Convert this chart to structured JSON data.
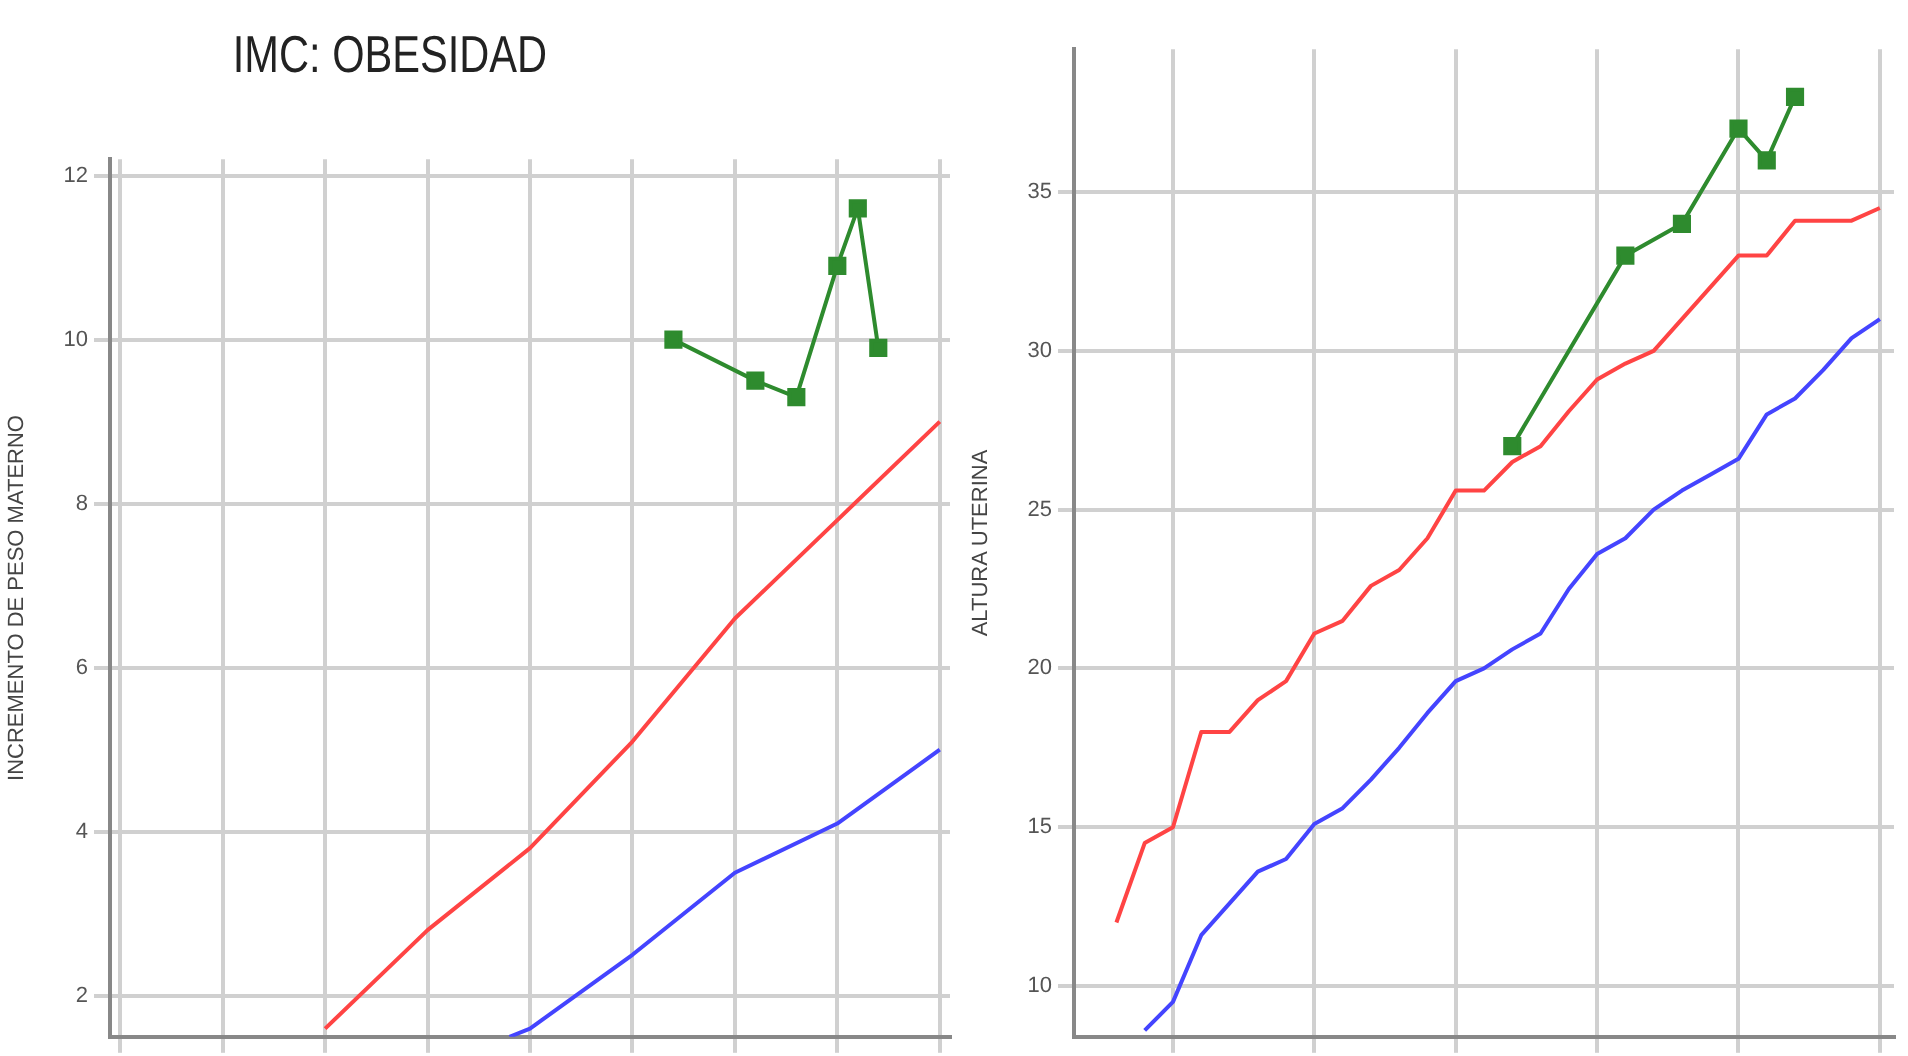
{
  "chart_data": [
    {
      "type": "line",
      "title": "IMC: OBESIDAD",
      "ylabel": "INCREMENTO DE PESO MATERNO",
      "categories": [
        null,
        null,
        null,
        null,
        null,
        null,
        null,
        null,
        null,
        null,
        null,
        null,
        null,
        null,
        null,
        null,
        null,
        null,
        null,
        null,
        null,
        null,
        null,
        null,
        null,
        null,
        null,
        null,
        null,
        null,
        null,
        null,
        null,
        null,
        null,
        null,
        null,
        null,
        null,
        null,
        null
      ],
      "ylim": [
        1.5,
        12.2
      ],
      "yticks": [
        2,
        4,
        6,
        8,
        10,
        12
      ],
      "grid": true,
      "tick_labels": "y",
      "series": [
        {
          "color": "#ff4444",
          "marker": "none",
          "values": [
            null,
            null,
            null,
            null,
            null,
            null,
            null,
            null,
            null,
            null,
            1.6,
            null,
            null,
            null,
            null,
            2.8,
            null,
            null,
            null,
            null,
            3.8,
            null,
            null,
            null,
            null,
            5.1,
            null,
            null,
            null,
            null,
            6.6,
            null,
            null,
            null,
            null,
            7.8,
            null,
            null,
            null,
            null,
            9.0
          ]
        },
        {
          "color": "#4444ff",
          "marker": "none",
          "values": [
            null,
            null,
            null,
            null,
            null,
            null,
            null,
            null,
            null,
            null,
            null,
            null,
            null,
            null,
            null,
            null,
            null,
            null,
            null,
            1.5,
            1.6,
            null,
            null,
            null,
            null,
            2.5,
            null,
            null,
            null,
            null,
            3.5,
            null,
            null,
            null,
            null,
            4.1,
            null,
            null,
            null,
            null,
            5.0
          ]
        },
        {
          "color": "#2e8b2e",
          "marker": "square",
          "values": [
            null,
            null,
            null,
            null,
            null,
            null,
            null,
            null,
            null,
            null,
            null,
            null,
            null,
            null,
            null,
            null,
            null,
            null,
            null,
            null,
            null,
            null,
            null,
            null,
            null,
            null,
            null,
            10.0,
            null,
            null,
            null,
            9.5,
            null,
            9.3,
            null,
            10.9,
            11.6,
            9.9,
            null,
            null,
            null
          ]
        }
      ]
    },
    {
      "type": "line",
      "ylabel": "ALTURA UTERINA",
      "categories": [
        null,
        null,
        null,
        null,
        null,
        null,
        null,
        null,
        null,
        null,
        null,
        null,
        null,
        null,
        null,
        null,
        null,
        null,
        null,
        null,
        null,
        null,
        null,
        null,
        null,
        null,
        null,
        null,
        null
      ],
      "ylim": [
        8.4,
        39.5
      ],
      "yticks": [
        10,
        15,
        20,
        25,
        30,
        35
      ],
      "grid": true,
      "tick_labels": "y",
      "series": [
        {
          "color": "#ff4444",
          "marker": "none",
          "values": [
            null,
            12.0,
            14.5,
            15.0,
            18.0,
            18.0,
            19.0,
            19.6,
            21.1,
            21.5,
            22.6,
            23.1,
            24.1,
            25.6,
            25.6,
            26.5,
            27.0,
            28.1,
            29.1,
            29.6,
            30.0,
            31.0,
            32.0,
            33.0,
            33.0,
            34.1,
            34.1,
            34.1,
            34.5
          ]
        },
        {
          "color": "#4444ff",
          "marker": "none",
          "values": [
            null,
            null,
            8.6,
            9.5,
            11.6,
            12.6,
            13.6,
            14.0,
            15.1,
            15.6,
            16.5,
            17.5,
            18.6,
            19.6,
            20.0,
            20.6,
            21.1,
            22.5,
            23.6,
            24.1,
            25.0,
            25.6,
            26.1,
            26.6,
            28.0,
            28.5,
            29.4,
            30.4,
            31.0
          ]
        },
        {
          "color": "#2e8b2e",
          "marker": "square",
          "values": [
            null,
            null,
            null,
            null,
            null,
            null,
            null,
            null,
            null,
            null,
            null,
            null,
            null,
            null,
            null,
            27.0,
            null,
            null,
            null,
            33.0,
            null,
            34.0,
            null,
            37.0,
            36.0,
            38.0,
            null,
            null,
            null
          ]
        }
      ]
    }
  ]
}
